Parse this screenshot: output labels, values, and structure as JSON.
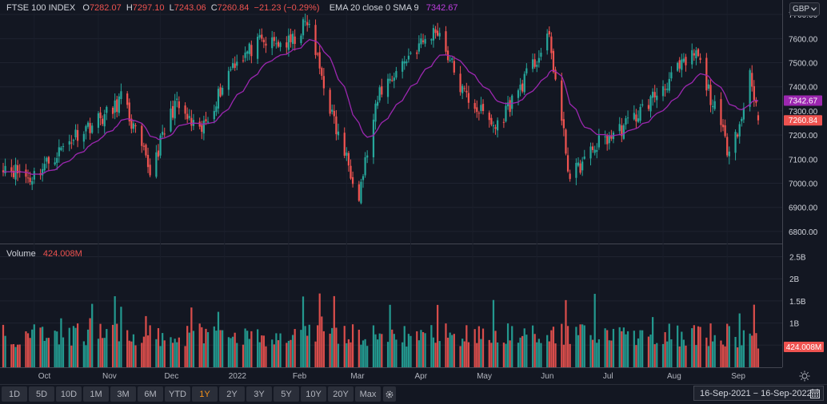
{
  "legend": {
    "symbol": "FTSE 100 INDEX",
    "o_label": "O",
    "o_value": "7282.07",
    "h_label": "H",
    "h_value": "7297.10",
    "l_label": "L",
    "l_value": "7243.06",
    "c_label": "C",
    "c_value": "7260.84",
    "change": "−21.23 (−0.29%)",
    "indicator": "EMA 20 close 0 SMA 9",
    "indicator_value": "7342.67"
  },
  "volume_legend": {
    "label": "Volume",
    "value": "424.008M"
  },
  "currency": "GBP",
  "price_axis": {
    "ticks": [
      "7700.00",
      "7600.00",
      "7500.00",
      "7400.00",
      "7300.00",
      "7200.00",
      "7100.00",
      "7000.00",
      "6900.00",
      "6800.00"
    ],
    "ema_badge": "7342.67",
    "close_badge": "7260.84"
  },
  "volume_axis": {
    "ticks": [
      "2.5B",
      "2B",
      "1.5B",
      "1B",
      "500M"
    ],
    "badge": "424.008M"
  },
  "time_axis": {
    "labels": [
      "Oct",
      "Nov",
      "Dec",
      "2022",
      "Feb",
      "Mar",
      "Apr",
      "May",
      "Jun",
      "Jul",
      "Aug",
      "Sep"
    ]
  },
  "ranges": [
    "1D",
    "5D",
    "10D",
    "1M",
    "3M",
    "6M",
    "YTD",
    "1Y",
    "2Y",
    "3Y",
    "5Y",
    "10Y",
    "20Y",
    "Max"
  ],
  "active_range": "1Y",
  "date_range": "16-Sep-2021  −  16-Sep-2022",
  "colors": {
    "up": "#26a69a",
    "down": "#ef5350",
    "ema": "#9c27b0",
    "background": "#131722"
  },
  "icons": {
    "currency_chevron": "chevron-down-icon",
    "settings": "gear-icon",
    "chart_settings": "sun-settings-icon",
    "calendar": "calendar-icon"
  },
  "chart_data": {
    "type": "candlestick",
    "title": "FTSE 100 INDEX",
    "x_range": [
      "16-Sep-2021",
      "16-Sep-2022"
    ],
    "ylim": [
      6750,
      7760
    ],
    "volume_ylim": [
      0,
      2.6
    ],
    "volume_unit": "B",
    "close_anchors": [
      {
        "date": "2021-09-16",
        "close": 7080
      },
      {
        "date": "2021-09-29",
        "close": 7020
      },
      {
        "date": "2021-10-08",
        "close": 7090
      },
      {
        "date": "2021-10-22",
        "close": 7210
      },
      {
        "date": "2021-11-08",
        "close": 7300
      },
      {
        "date": "2021-11-12",
        "close": 7360
      },
      {
        "date": "2021-11-26",
        "close": 7050
      },
      {
        "date": "2021-12-08",
        "close": 7330
      },
      {
        "date": "2021-12-20",
        "close": 7200
      },
      {
        "date": "2022-01-05",
        "close": 7500
      },
      {
        "date": "2022-01-18",
        "close": 7580
      },
      {
        "date": "2022-02-02",
        "close": 7580
      },
      {
        "date": "2022-02-10",
        "close": 7670
      },
      {
        "date": "2022-02-24",
        "close": 7220
      },
      {
        "date": "2022-03-07",
        "close": 6960
      },
      {
        "date": "2022-03-17",
        "close": 7380
      },
      {
        "date": "2022-04-01",
        "close": 7540
      },
      {
        "date": "2022-04-14",
        "close": 7640
      },
      {
        "date": "2022-04-26",
        "close": 7380
      },
      {
        "date": "2022-05-12",
        "close": 7230
      },
      {
        "date": "2022-06-07",
        "close": 7600
      },
      {
        "date": "2022-06-17",
        "close": 7020
      },
      {
        "date": "2022-07-01",
        "close": 7170
      },
      {
        "date": "2022-07-08",
        "close": 7200
      },
      {
        "date": "2022-07-19",
        "close": 7280
      },
      {
        "date": "2022-08-05",
        "close": 7440
      },
      {
        "date": "2022-08-17",
        "close": 7540
      },
      {
        "date": "2022-09-01",
        "close": 7150
      },
      {
        "date": "2022-09-08",
        "close": 7260
      },
      {
        "date": "2022-09-12",
        "close": 7470
      },
      {
        "date": "2022-09-16",
        "close": 7260.84
      }
    ],
    "ema_last": 7342.67,
    "last_candle": {
      "open": 7282.07,
      "high": 7297.1,
      "low": 7243.06,
      "close": 7260.84,
      "volume": 424008000
    }
  }
}
